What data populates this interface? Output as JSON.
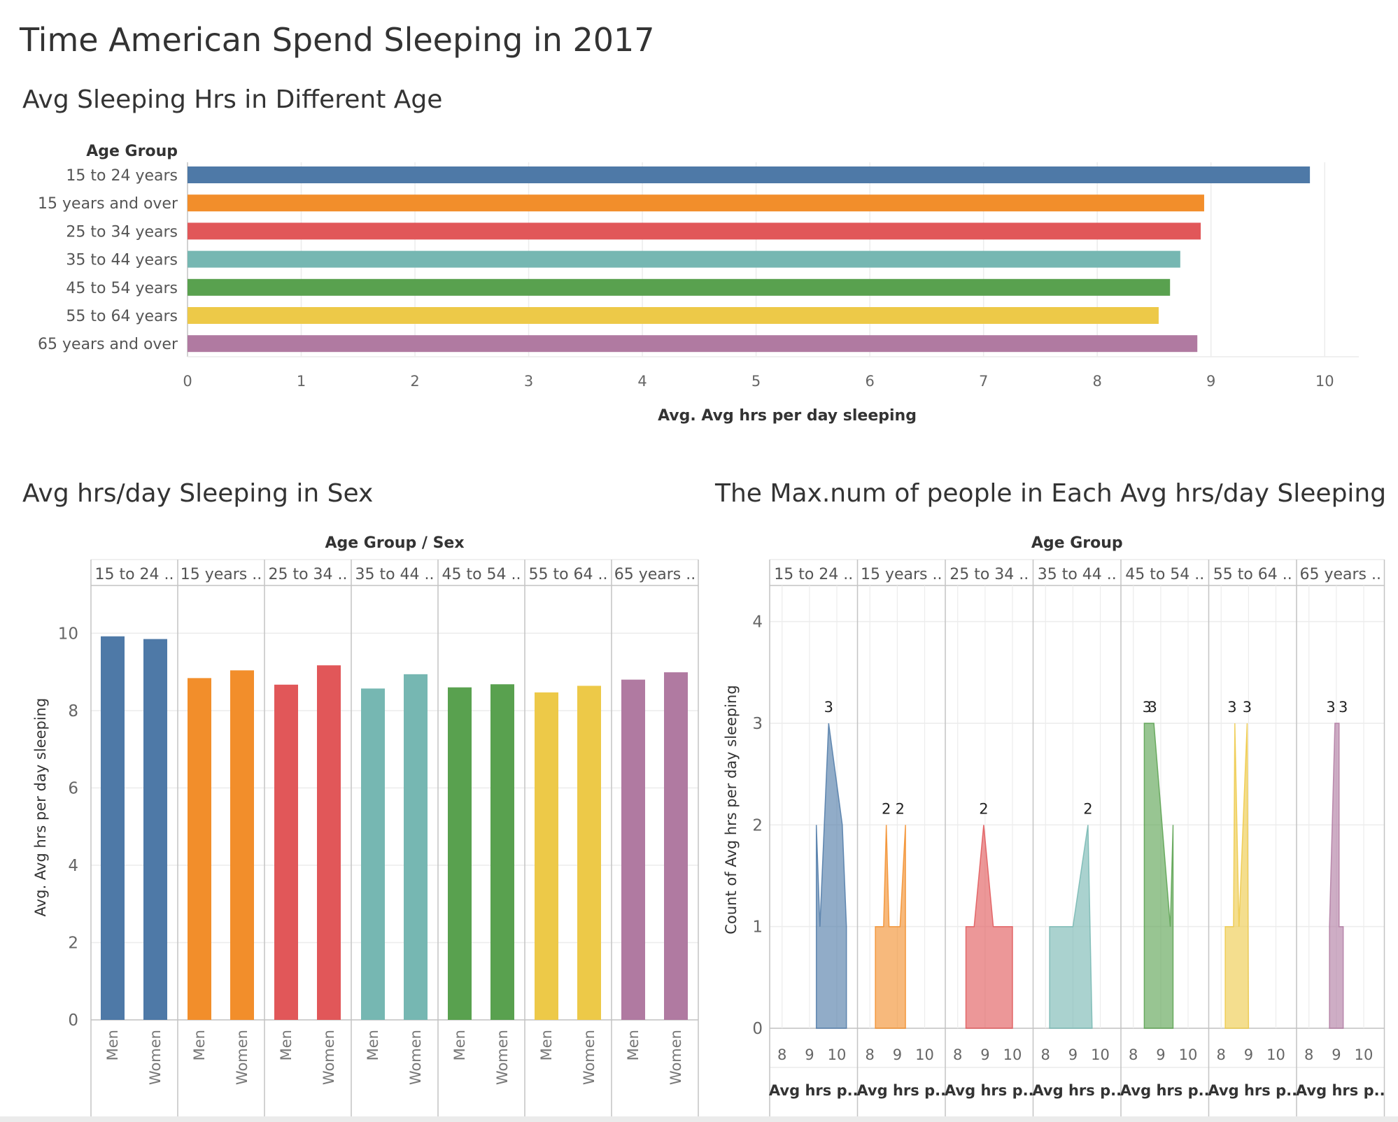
{
  "dashboard": {
    "title": "Time American Spend Sleeping in 2017"
  },
  "chart_data": [
    {
      "type": "bar",
      "orientation": "horizontal",
      "title": "Avg  Sleeping Hrs in Different Age",
      "row_header": "Age Group",
      "xlabel": "Avg. Avg hrs per day sleeping",
      "xlim": [
        0,
        10.3
      ],
      "xticks": [
        "0",
        "1",
        "2",
        "3",
        "4",
        "5",
        "6",
        "7",
        "8",
        "9",
        "10"
      ],
      "grid": "vertical",
      "categories": [
        "15 to 24 years",
        "15 years and over",
        "25 to 34 years",
        "35 to 44 years",
        "45 to 54 years",
        "55 to 64 years",
        "65 years and over"
      ],
      "values": [
        9.87,
        8.94,
        8.91,
        8.73,
        8.64,
        8.54,
        8.88
      ],
      "colors": [
        "#4e79a7",
        "#f28e2b",
        "#e15759",
        "#76b7b2",
        "#59a14f",
        "#edc948",
        "#b07aa1"
      ]
    },
    {
      "type": "bar",
      "title": "Avg hrs/day Sleeping in Sex",
      "column_header": "Age Group  /  Sex",
      "ylabel": "Avg. Avg hrs per day sleeping",
      "ylim": [
        0,
        11
      ],
      "yticks": [
        "0",
        "2",
        "4",
        "6",
        "8",
        "10"
      ],
      "groups": [
        "15 to 24 ..",
        "15 years ..",
        "25 to 34 ..",
        "35 to 44 ..",
        "45 to 54 ..",
        "55 to 64 ..",
        "65 years .."
      ],
      "sub_categories": [
        "Men",
        "Women"
      ],
      "values": [
        [
          9.92,
          9.85
        ],
        [
          8.84,
          9.04
        ],
        [
          8.67,
          9.17
        ],
        [
          8.57,
          8.94
        ],
        [
          8.6,
          8.68
        ],
        [
          8.47,
          8.64
        ],
        [
          8.8,
          8.99
        ]
      ],
      "colors": [
        "#4e79a7",
        "#f28e2b",
        "#e15759",
        "#76b7b2",
        "#59a14f",
        "#edc948",
        "#b07aa1"
      ]
    },
    {
      "type": "area",
      "title": "The Max.num of people in Each Avg hrs/day Sleeping",
      "column_header": "Age Group",
      "groups": [
        "15 to 24 ..",
        "15 years ..",
        "25 to 34 ..",
        "35 to 44 ..",
        "45 to 54 ..",
        "55 to 64 ..",
        "65 years .."
      ],
      "ylabel": "Count of Avg hrs per day sleeping",
      "ylim": [
        0,
        4.3
      ],
      "yticks": [
        "0",
        "1",
        "2",
        "3",
        "4"
      ],
      "xlim": [
        7.7,
        10.6
      ],
      "xticks": [
        "8",
        "9",
        "10"
      ],
      "xlabel_short": "Avg hrs p..",
      "colors": [
        "#4e79a7",
        "#f28e2b",
        "#e15759",
        "#76b7b2",
        "#59a14f",
        "#edc948",
        "#b07aa1"
      ],
      "series": [
        {
          "points": [
            [
              9.25,
              0
            ],
            [
              9.25,
              2
            ],
            [
              9.38,
              1
            ],
            [
              9.7,
              3
            ],
            [
              10.2,
              2
            ],
            [
              10.35,
              1
            ],
            [
              10.35,
              0
            ]
          ],
          "labels": [
            {
              "x": 9.7,
              "y": 3,
              "text": "3"
            }
          ]
        },
        {
          "points": [
            [
              8.2,
              0
            ],
            [
              8.2,
              1
            ],
            [
              8.5,
              1
            ],
            [
              8.6,
              2
            ],
            [
              8.7,
              1
            ],
            [
              9.1,
              1
            ],
            [
              9.3,
              2
            ],
            [
              9.3,
              0
            ]
          ],
          "labels": [
            {
              "x": 8.6,
              "y": 2,
              "text": "2"
            },
            {
              "x": 9.1,
              "y": 2,
              "text": "2"
            }
          ]
        },
        {
          "points": [
            [
              8.3,
              0
            ],
            [
              8.3,
              1
            ],
            [
              8.6,
              1
            ],
            [
              8.95,
              2
            ],
            [
              9.3,
              1
            ],
            [
              10.0,
              1
            ],
            [
              10.0,
              0
            ]
          ],
          "labels": [
            {
              "x": 8.95,
              "y": 2,
              "text": "2"
            }
          ]
        },
        {
          "points": [
            [
              8.15,
              0
            ],
            [
              8.15,
              1
            ],
            [
              9.0,
              1
            ],
            [
              9.55,
              2
            ],
            [
              9.7,
              0
            ]
          ],
          "labels": [
            {
              "x": 9.55,
              "y": 2,
              "text": "2"
            }
          ]
        },
        {
          "points": [
            [
              8.4,
              0
            ],
            [
              8.4,
              3
            ],
            [
              8.75,
              3
            ],
            [
              9.35,
              1
            ],
            [
              9.45,
              2
            ],
            [
              9.45,
              0
            ]
          ],
          "labels": [
            {
              "x": 8.5,
              "y": 3,
              "text": "3"
            },
            {
              "x": 8.7,
              "y": 3,
              "text": "3"
            }
          ]
        },
        {
          "points": [
            [
              8.15,
              0
            ],
            [
              8.15,
              1
            ],
            [
              8.45,
              1
            ],
            [
              8.5,
              3
            ],
            [
              8.65,
              1
            ],
            [
              8.95,
              3
            ],
            [
              9.0,
              0
            ]
          ],
          "labels": [
            {
              "x": 8.4,
              "y": 3,
              "text": "3"
            },
            {
              "x": 8.95,
              "y": 3,
              "text": "3"
            }
          ]
        },
        {
          "points": [
            [
              8.75,
              0
            ],
            [
              8.75,
              1
            ],
            [
              8.95,
              3
            ],
            [
              9.1,
              3
            ],
            [
              9.1,
              1
            ],
            [
              9.25,
              1
            ],
            [
              9.25,
              0
            ]
          ],
          "labels": [
            {
              "x": 8.8,
              "y": 3,
              "text": "3"
            },
            {
              "x": 9.25,
              "y": 3,
              "text": "3"
            }
          ]
        }
      ]
    }
  ]
}
